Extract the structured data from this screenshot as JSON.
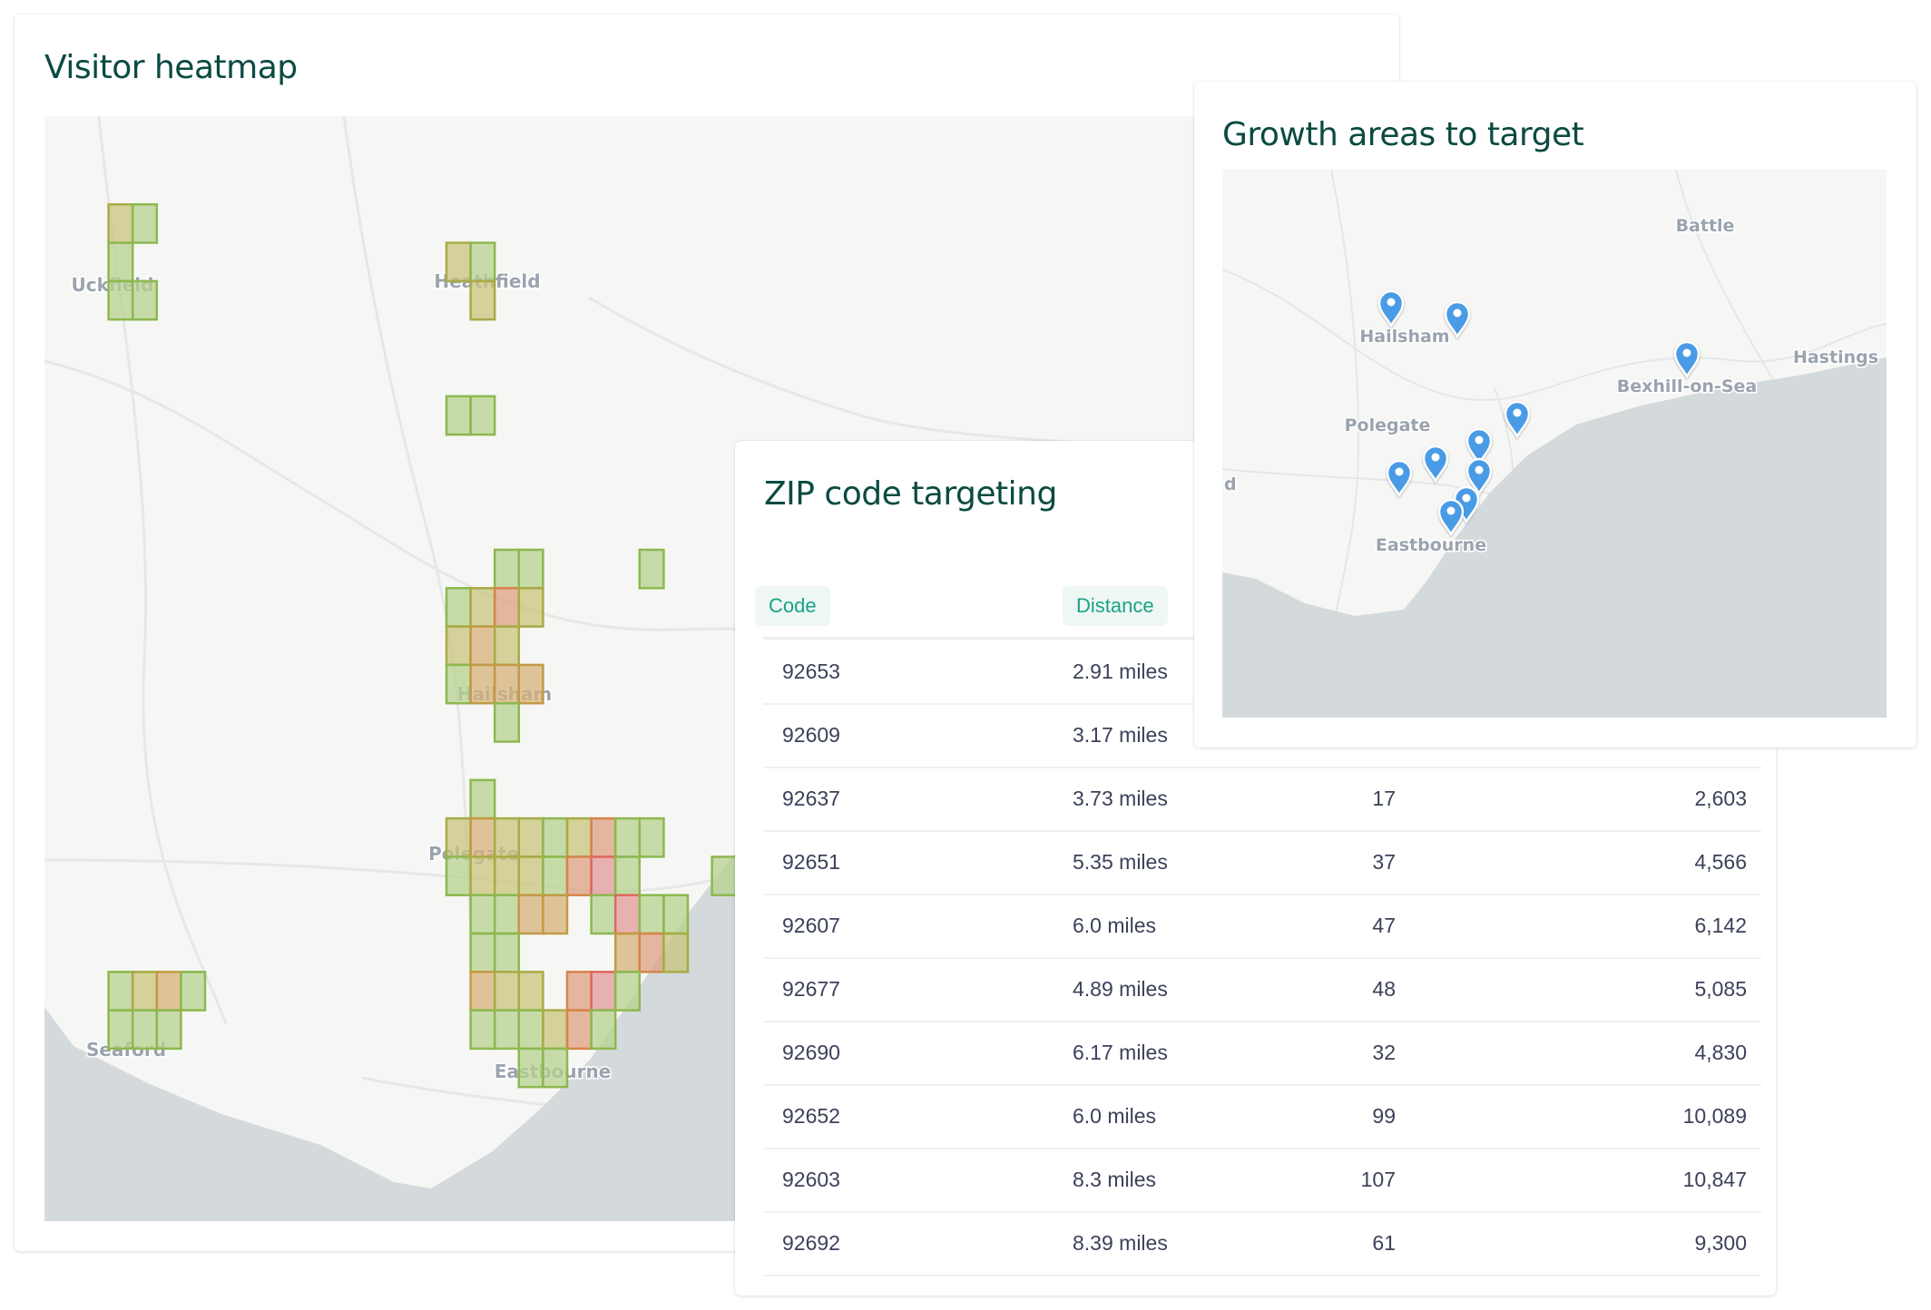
{
  "heatmap": {
    "title": "Visitor heatmap",
    "place_labels": [
      "Uckfield",
      "Heathfield",
      "Hailsham",
      "Polegate",
      "Seaford",
      "Eastbourne"
    ],
    "intensity_colors": [
      "#b7d18f",
      "#c8c47c",
      "#d6b27a",
      "#dda081",
      "#e39a9a"
    ],
    "land_color": "#f6f7f5",
    "sea_color": "#d4d9dc"
  },
  "zip": {
    "title": "ZIP code targeting",
    "columns": {
      "code": "Code",
      "distance": "Distance"
    },
    "rows": [
      {
        "code": "92653",
        "distance": "2.91 miles"
      },
      {
        "code": "92609",
        "distance": "3.17 miles"
      },
      {
        "code": "92637",
        "distance": "3.73 miles",
        "v1": "17",
        "v2": "2,603"
      },
      {
        "code": "92651",
        "distance": "5.35 miles",
        "v1": "37",
        "v2": "4,566"
      },
      {
        "code": "92607",
        "distance": "6.0 miles",
        "v1": "47",
        "v2": "6,142"
      },
      {
        "code": "92677",
        "distance": "4.89 miles",
        "v1": "48",
        "v2": "5,085"
      },
      {
        "code": "92690",
        "distance": "6.17 miles",
        "v1": "32",
        "v2": "4,830"
      },
      {
        "code": "92652",
        "distance": "6.0 miles",
        "v1": "99",
        "v2": "10,089"
      },
      {
        "code": "92603",
        "distance": "8.3 miles",
        "v1": "107",
        "v2": "10,847"
      },
      {
        "code": "92692",
        "distance": "8.39 miles",
        "v1": "61",
        "v2": "9,300"
      }
    ],
    "header_color": "#1aa286"
  },
  "growth": {
    "title": "Growth areas to target",
    "place_labels": [
      "Battle",
      "Hailsham",
      "Hastings",
      "Bexhill-on-Sea",
      "Polegate",
      "Eastbourne",
      "d"
    ],
    "pin_icon": "map-pin-icon",
    "pin_color": "#4a9be6",
    "pin_count": 10
  }
}
